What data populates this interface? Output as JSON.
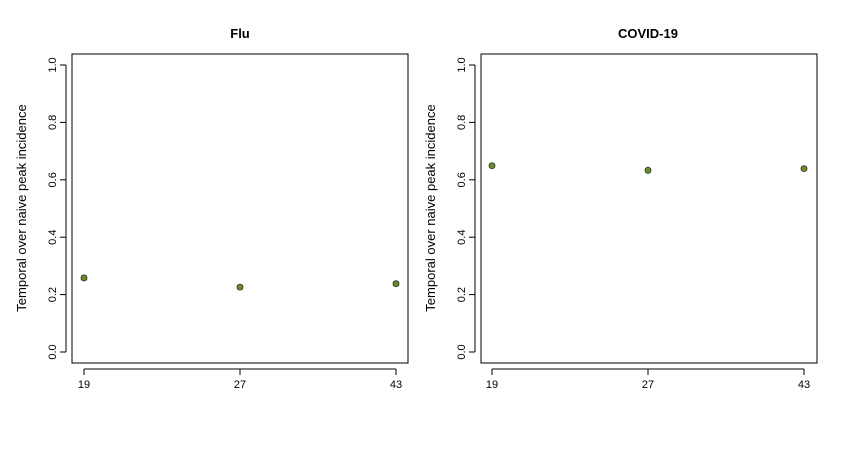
{
  "chart_data": [
    {
      "type": "scatter",
      "title": "Flu",
      "xlabel": "",
      "ylabel": "Temporal over naive peak incidence",
      "x": [
        "19",
        "27",
        "43"
      ],
      "values": [
        0.258,
        0.226,
        0.238
      ],
      "error": [
        0.006,
        0.006,
        0.006
      ],
      "ylim": [
        0.0,
        1.0
      ],
      "yticks": [
        "0.0",
        "0.2",
        "0.4",
        "0.6",
        "0.8",
        "1.0"
      ],
      "grid": false,
      "point_color": "#6b8e23",
      "error_color": "#000000"
    },
    {
      "type": "scatter",
      "title": "COVID-19",
      "xlabel": "",
      "ylabel": "Temporal over naive peak incidence",
      "x": [
        "19",
        "27",
        "43"
      ],
      "values": [
        0.649,
        0.633,
        0.639
      ],
      "error": [
        0.005,
        0.005,
        0.005
      ],
      "ylim": [
        0.0,
        1.0
      ],
      "yticks": [
        "0.0",
        "0.2",
        "0.4",
        "0.6",
        "0.8",
        "1.0"
      ],
      "grid": false,
      "point_color": "#6b8e23",
      "error_color": "#000000"
    }
  ]
}
